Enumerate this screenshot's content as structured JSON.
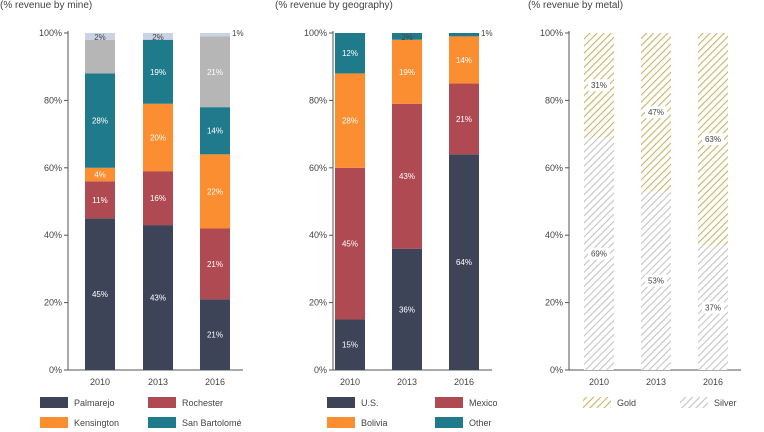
{
  "colors": {
    "palmarejo": "#3d4458",
    "rochester": "#b04a52",
    "kensington": "#fb8e30",
    "san_bartolome": "#1f7b8c",
    "gray": "#b6b6b6",
    "light": "#c9d3e5",
    "us": "#3d4458",
    "mexico": "#b04a52",
    "bolivia": "#fb8e30",
    "other": "#1f7b8c",
    "gold": "#c8b463",
    "silver": "#c4c4c4",
    "axis": "#555555",
    "text": "#444444"
  },
  "chart_data": [
    {
      "type": "bar",
      "stacked": true,
      "title": "(% revenue by mine)",
      "categories": [
        "2010",
        "2013",
        "2016"
      ],
      "ylim": [
        0,
        100
      ],
      "ytick_labels": [
        "0%",
        "20%",
        "40%",
        "60%",
        "80%",
        "100%"
      ],
      "segments": [
        {
          "name": "Palmarejo",
          "color_key": "palmarejo",
          "values": [
            45,
            43,
            21
          ],
          "labels": [
            "45%",
            "43%",
            "21%"
          ]
        },
        {
          "name": "Rochester",
          "color_key": "rochester",
          "values": [
            11,
            16,
            21
          ],
          "labels": [
            "11%",
            "16%",
            "21%"
          ]
        },
        {
          "name": "Kensington",
          "color_key": "kensington",
          "values": [
            4,
            20,
            22
          ],
          "labels": [
            "4%",
            "20%",
            "22%"
          ]
        },
        {
          "name": "San Bartolomé",
          "color_key": "san_bartolome",
          "values": [
            28,
            19,
            14
          ],
          "labels": [
            "28%",
            "19%",
            "14%"
          ]
        },
        {
          "name": "",
          "color_key": "gray",
          "values": [
            10,
            0,
            21
          ],
          "labels": [
            "",
            "",
            "21%"
          ]
        },
        {
          "name": "",
          "color_key": "light",
          "values": [
            2,
            2,
            1
          ],
          "labels": [
            "2%",
            "2%",
            "1%"
          ]
        }
      ],
      "legend": [
        {
          "name": "Palmarejo",
          "color_key": "palmarejo"
        },
        {
          "name": "Rochester",
          "color_key": "rochester"
        },
        {
          "name": "Kensington",
          "color_key": "kensington"
        },
        {
          "name": "San Bartolomé",
          "color_key": "san_bartolome"
        }
      ]
    },
    {
      "type": "bar",
      "stacked": true,
      "title": "(% revenue by geography)",
      "categories": [
        "2010",
        "2013",
        "2016"
      ],
      "ylim": [
        0,
        100
      ],
      "ytick_labels": [
        "0%",
        "20%",
        "40%",
        "60%",
        "80%",
        "100%"
      ],
      "segments": [
        {
          "name": "U.S.",
          "color_key": "us",
          "values": [
            15,
            36,
            64
          ],
          "labels": [
            "15%",
            "36%",
            "64%"
          ]
        },
        {
          "name": "Mexico",
          "color_key": "mexico",
          "values": [
            45,
            43,
            21
          ],
          "labels": [
            "45%",
            "43%",
            "21%"
          ]
        },
        {
          "name": "Bolivia",
          "color_key": "bolivia",
          "values": [
            28,
            19,
            14
          ],
          "labels": [
            "28%",
            "19%",
            "14%"
          ]
        },
        {
          "name": "Other",
          "color_key": "other",
          "values": [
            12,
            2,
            1
          ],
          "labels": [
            "12%",
            "2%",
            "1%"
          ]
        }
      ],
      "legend": [
        {
          "name": "U.S.",
          "color_key": "us"
        },
        {
          "name": "Mexico",
          "color_key": "mexico"
        },
        {
          "name": "Bolivia",
          "color_key": "bolivia"
        },
        {
          "name": "Other",
          "color_key": "other"
        }
      ]
    },
    {
      "type": "bar",
      "stacked": true,
      "title": "(% revenue by metal)",
      "categories": [
        "2010",
        "2013",
        "2016"
      ],
      "ylim": [
        0,
        100
      ],
      "ytick_labels": [
        "0%",
        "20%",
        "40%",
        "60%",
        "80%",
        "100%"
      ],
      "segments": [
        {
          "name": "Silver",
          "color_key": "silver",
          "values": [
            69,
            53,
            37
          ],
          "labels": [
            "69%",
            "53%",
            "37%"
          ]
        },
        {
          "name": "Gold",
          "color_key": "gold",
          "values": [
            31,
            47,
            63
          ],
          "labels": [
            "31%",
            "47%",
            "63%"
          ]
        }
      ],
      "legend": [
        {
          "name": "Gold",
          "color_key": "gold"
        },
        {
          "name": "Silver",
          "color_key": "silver"
        }
      ]
    }
  ]
}
